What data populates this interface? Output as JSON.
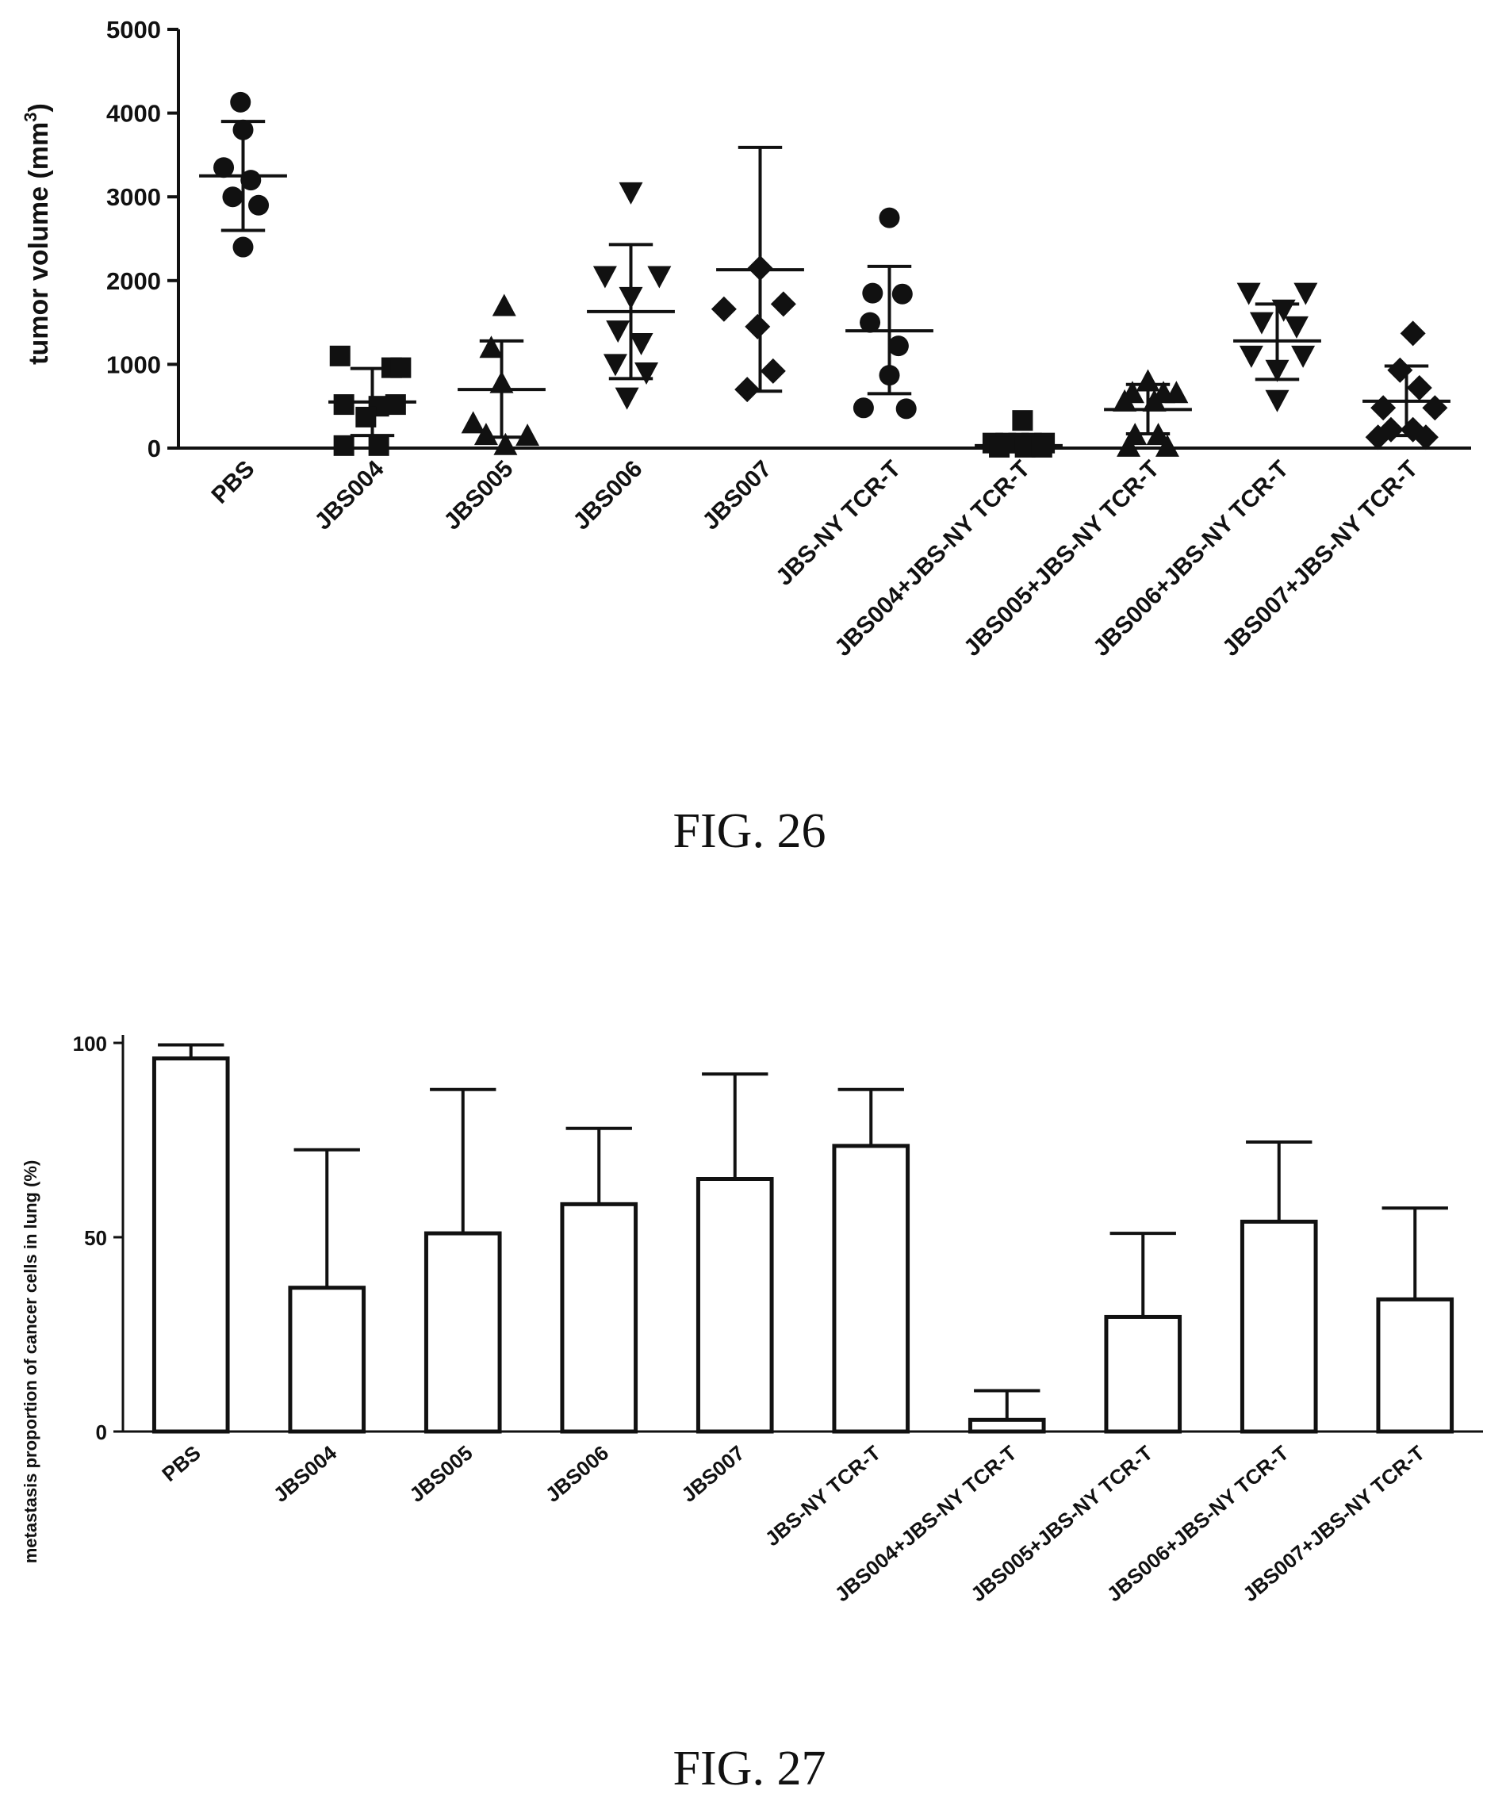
{
  "chart_data": [
    {
      "type": "scatter",
      "ylabel": "tumor volume (mm",
      "ylabel_superscript": "3",
      "ylabel_close": ")",
      "ylim": [
        0,
        5000
      ],
      "yticks": [
        "0",
        "1000",
        "2000",
        "3000",
        "4000",
        "5000"
      ],
      "categories": [
        "PBS",
        "JBS004",
        "JBS005",
        "JBS006",
        "JBS007",
        "JBS-NY TCR-T",
        "JBS004+JBS-NY TCR-T",
        "JBS005+JBS-NY TCR-T",
        "JBS006+JBS-NY TCR-T",
        "JBS007+JBS-NY TCR-T"
      ],
      "marker_colors": "#111111",
      "groups": [
        {
          "marker": "circle",
          "mean": 3250,
          "sd_low": 2600,
          "sd_high": 3900,
          "points": [
            [
              -0.02,
              4130
            ],
            [
              0.0,
              3800
            ],
            [
              -0.15,
              3350
            ],
            [
              0.06,
              3200
            ],
            [
              -0.08,
              3000
            ],
            [
              0.12,
              2900
            ],
            [
              0.0,
              2400
            ]
          ]
        },
        {
          "marker": "square",
          "mean": 550,
          "sd_low": 150,
          "sd_high": 950,
          "points": [
            [
              -0.25,
              1100
            ],
            [
              0.15,
              960
            ],
            [
              0.22,
              960
            ],
            [
              -0.22,
              520
            ],
            [
              0.05,
              500
            ],
            [
              0.18,
              520
            ],
            [
              -0.05,
              370
            ],
            [
              -0.22,
              30
            ],
            [
              0.05,
              30
            ]
          ]
        },
        {
          "marker": "triangle-up",
          "mean": 700,
          "sd_low": 130,
          "sd_high": 1280,
          "points": [
            [
              0.02,
              1700
            ],
            [
              -0.08,
              1200
            ],
            [
              0.0,
              780
            ],
            [
              -0.22,
              300
            ],
            [
              -0.12,
              160
            ],
            [
              0.2,
              150
            ],
            [
              0.03,
              40
            ]
          ]
        },
        {
          "marker": "triangle-down",
          "mean": 1630,
          "sd_low": 830,
          "sd_high": 2430,
          "points": [
            [
              0.0,
              3050
            ],
            [
              -0.2,
              2050
            ],
            [
              0.22,
              2050
            ],
            [
              0.0,
              1800
            ],
            [
              -0.1,
              1400
            ],
            [
              0.08,
              1250
            ],
            [
              -0.12,
              1000
            ],
            [
              0.12,
              900
            ],
            [
              -0.03,
              600
            ]
          ]
        },
        {
          "marker": "diamond",
          "mean": 2130,
          "sd_low": 680,
          "sd_high": 3590,
          "points": [
            [
              0.0,
              2150
            ],
            [
              -0.28,
              1660
            ],
            [
              0.18,
              1720
            ],
            [
              -0.02,
              1450
            ],
            [
              0.1,
              920
            ],
            [
              -0.1,
              700
            ]
          ]
        },
        {
          "marker": "circle",
          "mean": 1400,
          "sd_low": 650,
          "sd_high": 2170,
          "points": [
            [
              0.0,
              2750
            ],
            [
              -0.13,
              1850
            ],
            [
              0.1,
              1840
            ],
            [
              -0.15,
              1500
            ],
            [
              0.07,
              1220
            ],
            [
              0.0,
              870
            ],
            [
              -0.2,
              480
            ],
            [
              0.13,
              470
            ]
          ]
        },
        {
          "marker": "square",
          "mean": 30,
          "sd_low": 0,
          "sd_high": 150,
          "points": [
            [
              0.03,
              330
            ],
            [
              -0.2,
              60
            ],
            [
              -0.1,
              60
            ],
            [
              0.0,
              60
            ],
            [
              0.1,
              60
            ],
            [
              0.2,
              60
            ],
            [
              -0.15,
              10
            ],
            [
              0.05,
              10
            ],
            [
              0.18,
              10
            ]
          ]
        },
        {
          "marker": "triangle-up",
          "mean": 460,
          "sd_low": 170,
          "sd_high": 760,
          "points": [
            [
              0.0,
              800
            ],
            [
              -0.12,
              660
            ],
            [
              0.12,
              660
            ],
            [
              0.22,
              660
            ],
            [
              -0.18,
              560
            ],
            [
              0.05,
              560
            ],
            [
              -0.1,
              160
            ],
            [
              0.08,
              160
            ],
            [
              -0.15,
              20
            ],
            [
              0.15,
              20
            ]
          ]
        },
        {
          "marker": "triangle-down",
          "mean": 1280,
          "sd_low": 820,
          "sd_high": 1720,
          "points": [
            [
              -0.22,
              1850
            ],
            [
              0.22,
              1850
            ],
            [
              0.05,
              1650
            ],
            [
              -0.12,
              1500
            ],
            [
              0.15,
              1450
            ],
            [
              -0.2,
              1100
            ],
            [
              0.2,
              1100
            ],
            [
              0.0,
              930
            ],
            [
              0.0,
              570
            ]
          ]
        },
        {
          "marker": "diamond",
          "mean": 560,
          "sd_low": 150,
          "sd_high": 980,
          "points": [
            [
              0.05,
              1370
            ],
            [
              -0.05,
              930
            ],
            [
              0.1,
              720
            ],
            [
              -0.18,
              480
            ],
            [
              0.22,
              480
            ],
            [
              -0.12,
              220
            ],
            [
              0.05,
              220
            ],
            [
              -0.22,
              130
            ],
            [
              0.15,
              130
            ]
          ]
        }
      ],
      "caption": "FIG. 26"
    },
    {
      "type": "bar",
      "ylabel": "metastasis proportion of cancer cells in lung (%)",
      "ylim": [
        0,
        100
      ],
      "yticks": [
        "0",
        "50",
        "100"
      ],
      "categories": [
        "PBS",
        "JBS004",
        "JBS005",
        "JBS006",
        "JBS007",
        "JBS-NY TCR-T",
        "JBS004+JBS-NY TCR-T",
        "JBS005+JBS-NY TCR-T",
        "JBS006+JBS-NY TCR-T",
        "JBS007+JBS-NY TCR-T"
      ],
      "values": [
        96,
        37,
        51,
        58.5,
        65,
        73.5,
        3,
        29.5,
        54,
        34
      ],
      "error_upper": [
        99.5,
        72.5,
        88,
        78,
        92,
        88,
        10.5,
        51,
        74.5,
        57.5
      ],
      "bar_color": "#ffffff",
      "line_color": "#111111",
      "caption": "FIG. 27"
    }
  ]
}
